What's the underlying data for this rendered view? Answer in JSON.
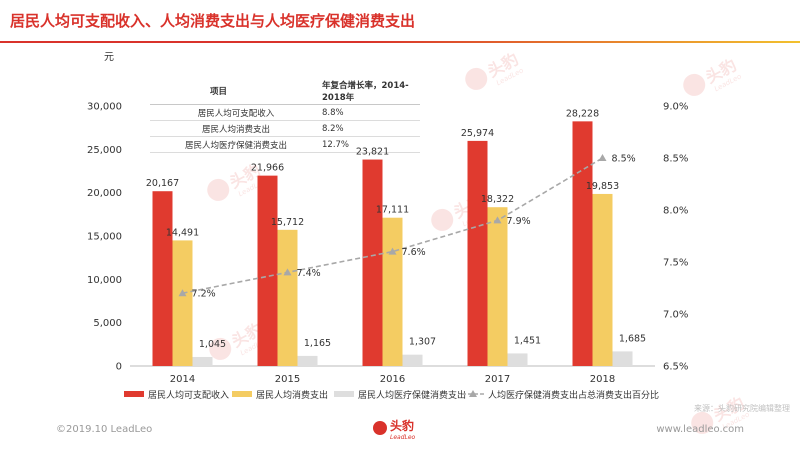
{
  "header": {
    "title": "居民人均可支配收入、人均消费支出与人均医疗保健消费支出"
  },
  "footer": {
    "copyright": "©2019.10 LeadLeo",
    "website": "www.leadleo.com",
    "logo_text": "头豹",
    "logo_sub": "LeadLeo"
  },
  "source_note": "来源：头豹研究院编辑整理",
  "watermark": {
    "text": "头豹",
    "sub": "LeadLeo"
  },
  "colors": {
    "income": "#e03a2f",
    "consumption": "#f4cc62",
    "medical": "#dedede",
    "ratio_line": "#a8a8a8",
    "title": "#d9322b"
  },
  "growth_table": {
    "headers": [
      "项目",
      "年复合增长率，2014-2018年"
    ],
    "rows": [
      {
        "item": "居民人均可支配收入",
        "rate": "8.8%"
      },
      {
        "item": "居民人均消费支出",
        "rate": "8.2%"
      },
      {
        "item": "居民人均医疗保健消费支出",
        "rate": "12.7%"
      }
    ]
  },
  "chart_data": {
    "type": "bar",
    "unit_label": "元",
    "categories": [
      "2014",
      "2015",
      "2016",
      "2017",
      "2018"
    ],
    "series": [
      {
        "name": "居民人均可支配收入",
        "type": "bar",
        "axis": "left",
        "values": [
          20167,
          21966,
          23821,
          25974,
          28228
        ],
        "labels": [
          "20,167",
          "21,966",
          "23,821",
          "25,974",
          "28,228"
        ]
      },
      {
        "name": "居民人均消费支出",
        "type": "bar",
        "axis": "left",
        "values": [
          14491,
          15712,
          17111,
          18322,
          19853
        ],
        "labels": [
          "14,491",
          "15,712",
          "17,111",
          "18,322",
          "19,853"
        ]
      },
      {
        "name": "居民人均医疗保健消费支出",
        "type": "bar",
        "axis": "left",
        "values": [
          1045,
          1165,
          1307,
          1451,
          1685
        ],
        "labels": [
          "1,045",
          "1,165",
          "1,307",
          "1,451",
          "1,685"
        ]
      },
      {
        "name": "人均医疗保健消费支出占总消费支出百分比",
        "type": "line",
        "axis": "right",
        "values": [
          7.2,
          7.4,
          7.6,
          7.9,
          8.5
        ],
        "labels": [
          "7.2%",
          "7.4%",
          "7.6%",
          "7.9%",
          "8.5%"
        ]
      }
    ],
    "y_left": {
      "min": 0,
      "max": 30000,
      "ticks": [
        0,
        5000,
        10000,
        15000,
        20000,
        25000,
        30000
      ],
      "tick_labels": [
        "0",
        "5,000",
        "10,000",
        "15,000",
        "20,000",
        "25,000",
        "30,000"
      ]
    },
    "y_right": {
      "min": 6.5,
      "max": 9.0,
      "ticks": [
        6.5,
        7.0,
        7.5,
        8.0,
        8.5,
        9.0
      ],
      "tick_labels": [
        "6.5%",
        "7.0%",
        "7.5%",
        "8.0%",
        "8.5%",
        "9.0%"
      ]
    },
    "grid": false,
    "legend_position": "bottom"
  }
}
